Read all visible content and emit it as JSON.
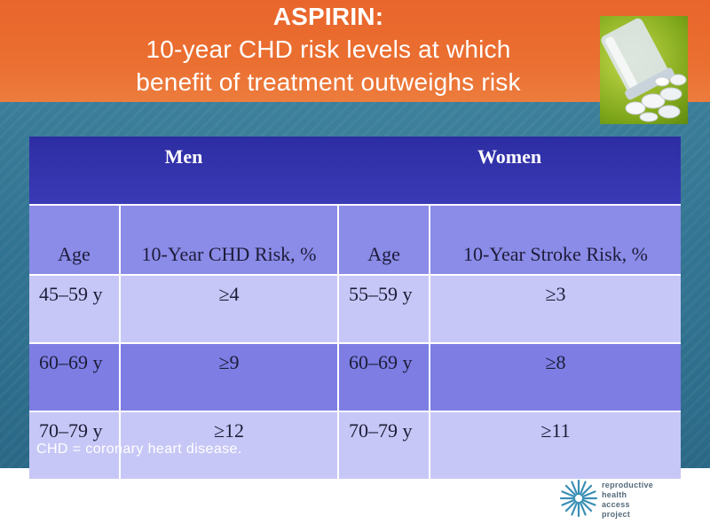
{
  "title": {
    "line1": "ASPIRIN:",
    "line2": "10-year CHD risk levels at which",
    "line3": "benefit of treatment outweighs risk"
  },
  "image": {
    "icon": "pill-bottle-photo"
  },
  "table": {
    "groups": {
      "men": "Men",
      "women": "Women"
    },
    "headers": {
      "men_age": "Age",
      "men_risk": "10-Year CHD Risk, %",
      "women_age": "Age",
      "women_risk": "10-Year Stroke Risk, %"
    },
    "rows": [
      {
        "men_age": "45–59 y",
        "men_risk": "≥4",
        "women_age": "55–59 y",
        "women_risk": "≥3"
      },
      {
        "men_age": "60–69 y",
        "men_risk": "≥9",
        "women_age": "60–69 y",
        "women_risk": "≥8"
      },
      {
        "men_age": "70–79 y",
        "men_risk": "≥12",
        "women_age": "70–79 y",
        "women_risk": "≥11"
      }
    ]
  },
  "footnote": "CHD = coronary heart disease.",
  "logo": {
    "icon": "sunburst-logo-icon",
    "lines": [
      "reproductive",
      "health",
      "access",
      "project"
    ]
  },
  "colors": {
    "header_band": "#e9652b",
    "body_band": "#2f7190",
    "table_group_header": "#2d2da3",
    "table_column_header": "#8b8be8",
    "row_light": "#c7c7f7",
    "row_dark": "#7d7de3",
    "logo_blue": "#3a8fb5"
  }
}
